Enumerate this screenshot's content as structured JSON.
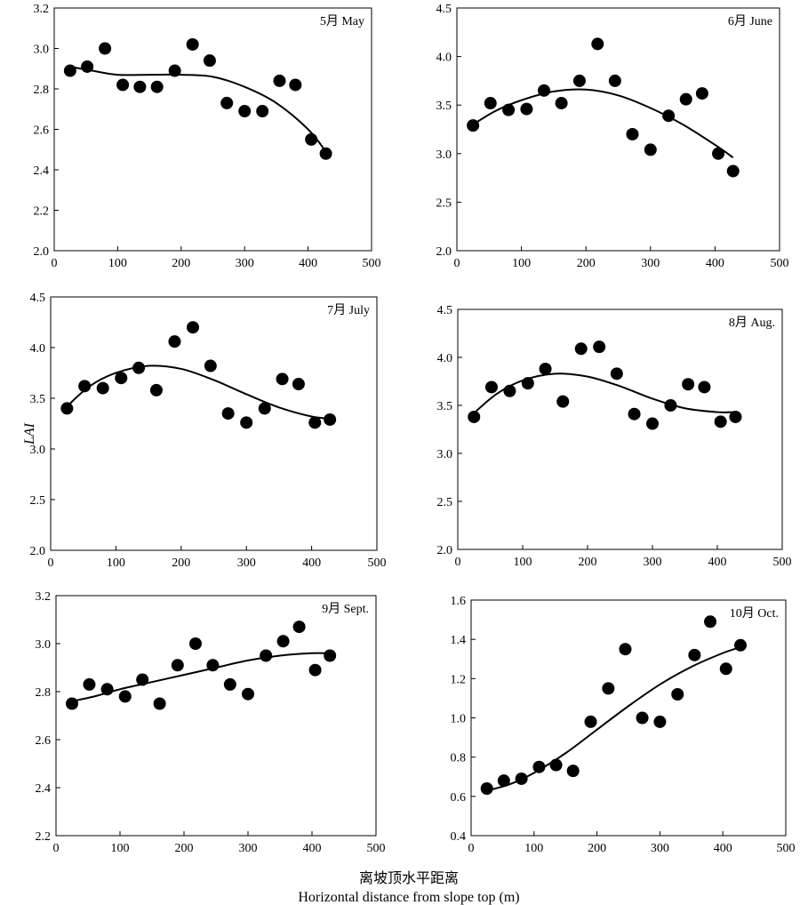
{
  "figure": {
    "ylabel": "LAI",
    "xlabel_cn": "离坡顶水平距离",
    "xlabel_en": "Horizontal distance from slope top (m)"
  },
  "chart_data": [
    {
      "type": "scatter",
      "label": "5月 May",
      "xlim": [
        0,
        500
      ],
      "ylim": [
        2.0,
        3.2
      ],
      "xticks": [
        0,
        100,
        200,
        300,
        400,
        500
      ],
      "yticks": [
        2.0,
        2.2,
        2.4,
        2.6,
        2.8,
        3.0,
        3.2
      ],
      "x": [
        25,
        52,
        80,
        108,
        135,
        162,
        190,
        218,
        245,
        272,
        300,
        328,
        355,
        380,
        405,
        428
      ],
      "y": [
        2.89,
        2.91,
        3.0,
        2.82,
        2.81,
        2.81,
        2.89,
        3.02,
        2.94,
        2.73,
        2.69,
        2.69,
        2.84,
        2.82,
        2.55,
        2.48
      ],
      "trend": {
        "x": [
          25,
          60,
          100,
          150,
          200,
          250,
          300,
          350,
          400,
          428
        ],
        "y": [
          2.91,
          2.89,
          2.87,
          2.87,
          2.87,
          2.86,
          2.81,
          2.73,
          2.6,
          2.49
        ]
      }
    },
    {
      "type": "scatter",
      "label": "6月 June",
      "xlim": [
        0,
        500
      ],
      "ylim": [
        2.0,
        4.5
      ],
      "xticks": [
        0,
        100,
        200,
        300,
        400,
        500
      ],
      "yticks": [
        2.0,
        2.5,
        3.0,
        3.5,
        4.0,
        4.5
      ],
      "x": [
        25,
        52,
        80,
        108,
        135,
        162,
        190,
        218,
        245,
        272,
        300,
        328,
        355,
        380,
        405,
        428
      ],
      "y": [
        3.29,
        3.52,
        3.45,
        3.46,
        3.65,
        3.52,
        3.75,
        4.13,
        3.75,
        3.2,
        3.04,
        3.39,
        3.56,
        3.62,
        3.0,
        2.82
      ],
      "trend": {
        "x": [
          25,
          60,
          100,
          150,
          200,
          250,
          300,
          350,
          400,
          428
        ],
        "y": [
          3.3,
          3.44,
          3.55,
          3.64,
          3.66,
          3.6,
          3.47,
          3.3,
          3.09,
          2.96
        ]
      }
    },
    {
      "type": "scatter",
      "label": "7月 July",
      "xlim": [
        0,
        500
      ],
      "ylim": [
        2.0,
        4.5
      ],
      "xticks": [
        0,
        100,
        200,
        300,
        400,
        500
      ],
      "yticks": [
        2.0,
        2.5,
        3.0,
        3.5,
        4.0,
        4.5
      ],
      "x": [
        25,
        52,
        80,
        108,
        135,
        162,
        190,
        218,
        245,
        272,
        300,
        328,
        355,
        380,
        405,
        428
      ],
      "y": [
        3.4,
        3.62,
        3.6,
        3.7,
        3.8,
        3.58,
        4.06,
        4.2,
        3.82,
        3.35,
        3.26,
        3.4,
        3.69,
        3.64,
        3.26,
        3.29
      ],
      "trend": {
        "x": [
          25,
          60,
          100,
          150,
          200,
          250,
          300,
          350,
          400,
          428
        ],
        "y": [
          3.42,
          3.62,
          3.75,
          3.82,
          3.79,
          3.68,
          3.54,
          3.41,
          3.32,
          3.3
        ]
      }
    },
    {
      "type": "scatter",
      "label": "8月 Aug.",
      "xlim": [
        0,
        500
      ],
      "ylim": [
        2.0,
        4.5
      ],
      "xticks": [
        0,
        100,
        200,
        300,
        400,
        500
      ],
      "yticks": [
        2.0,
        2.5,
        3.0,
        3.5,
        4.0,
        4.5
      ],
      "x": [
        25,
        52,
        80,
        108,
        135,
        162,
        190,
        218,
        245,
        272,
        300,
        328,
        355,
        380,
        405,
        428
      ],
      "y": [
        3.38,
        3.69,
        3.65,
        3.73,
        3.88,
        3.54,
        4.09,
        4.11,
        3.83,
        3.41,
        3.31,
        3.5,
        3.72,
        3.69,
        3.33,
        3.38
      ],
      "trend": {
        "x": [
          25,
          60,
          100,
          150,
          200,
          250,
          300,
          350,
          400,
          428
        ],
        "y": [
          3.42,
          3.62,
          3.76,
          3.83,
          3.8,
          3.7,
          3.57,
          3.47,
          3.43,
          3.43
        ]
      }
    },
    {
      "type": "scatter",
      "label": "9月 Sept.",
      "xlim": [
        0,
        500
      ],
      "ylim": [
        2.2,
        3.2
      ],
      "xticks": [
        0,
        100,
        200,
        300,
        400,
        500
      ],
      "yticks": [
        2.2,
        2.4,
        2.6,
        2.8,
        3.0,
        3.2
      ],
      "x": [
        25,
        52,
        80,
        108,
        135,
        162,
        190,
        218,
        245,
        272,
        300,
        328,
        355,
        380,
        405,
        428
      ],
      "y": [
        2.75,
        2.83,
        2.81,
        2.78,
        2.85,
        2.75,
        2.91,
        3.0,
        2.91,
        2.83,
        2.79,
        2.95,
        3.01,
        3.07,
        2.89,
        2.95
      ],
      "trend": {
        "x": [
          25,
          60,
          100,
          150,
          200,
          250,
          300,
          350,
          400,
          428
        ],
        "y": [
          2.76,
          2.78,
          2.81,
          2.84,
          2.87,
          2.9,
          2.93,
          2.95,
          2.96,
          2.96
        ]
      }
    },
    {
      "type": "scatter",
      "label": "10月 Oct.",
      "xlim": [
        0,
        500
      ],
      "ylim": [
        0.4,
        1.6
      ],
      "xticks": [
        0,
        100,
        200,
        300,
        400,
        500
      ],
      "yticks": [
        0.4,
        0.6,
        0.8,
        1.0,
        1.2,
        1.4,
        1.6
      ],
      "x": [
        25,
        52,
        80,
        108,
        135,
        162,
        190,
        218,
        245,
        272,
        300,
        328,
        355,
        380,
        405,
        428
      ],
      "y": [
        0.64,
        0.68,
        0.69,
        0.75,
        0.76,
        0.73,
        0.98,
        1.15,
        1.35,
        1.0,
        0.98,
        1.12,
        1.32,
        1.49,
        1.25,
        1.37
      ],
      "trend": {
        "x": [
          25,
          60,
          100,
          150,
          200,
          250,
          300,
          350,
          400,
          428
        ],
        "y": [
          0.63,
          0.66,
          0.72,
          0.82,
          0.94,
          1.06,
          1.17,
          1.26,
          1.33,
          1.36
        ]
      }
    }
  ]
}
